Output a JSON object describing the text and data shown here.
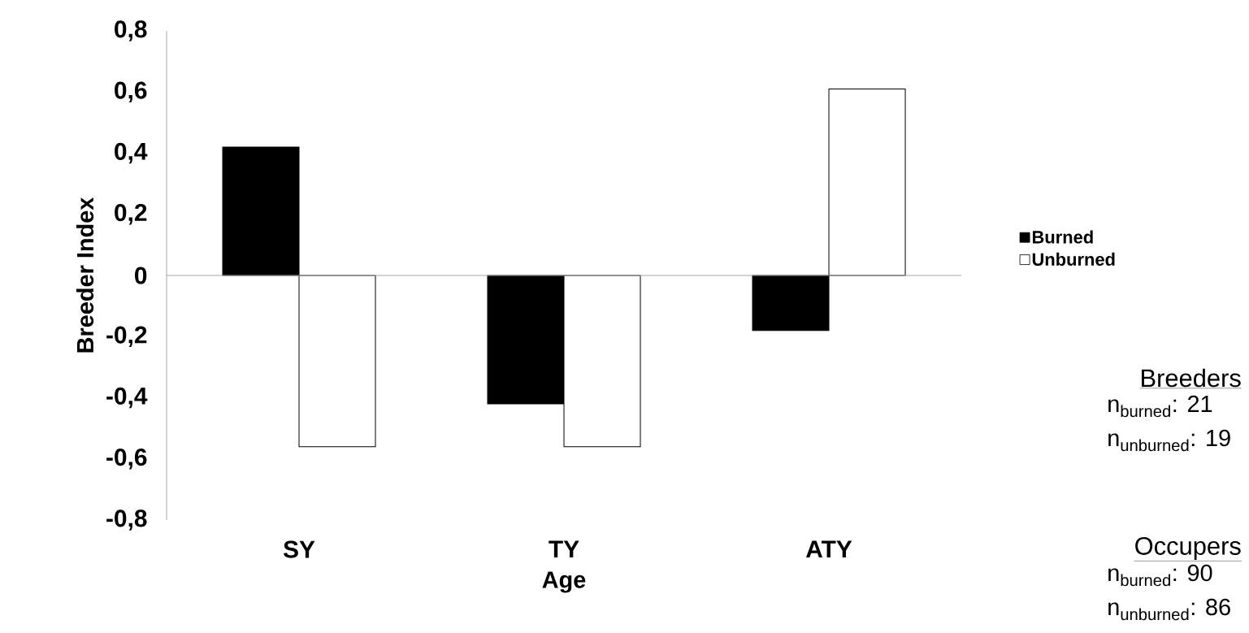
{
  "chart_data": {
    "type": "bar",
    "xlabel": "Age",
    "ylabel": "Breeder Index",
    "categories": [
      "SY",
      "TY",
      "ATY"
    ],
    "series": [
      {
        "name": "Burned",
        "color": "#000000",
        "values": [
          0.42,
          -0.42,
          -0.18
        ]
      },
      {
        "name": "Unburned",
        "color": "#ffffff",
        "values": [
          -0.56,
          -0.56,
          0.61
        ]
      }
    ],
    "ylim": [
      -0.8,
      0.8
    ],
    "yticks": [
      {
        "value": -0.8,
        "label": "-0,8"
      },
      {
        "value": -0.6,
        "label": "-0,6"
      },
      {
        "value": -0.4,
        "label": "-0,4"
      },
      {
        "value": -0.2,
        "label": "-0,2"
      },
      0,
      {
        "value": 0.2,
        "label": "0,2"
      },
      {
        "value": 0.4,
        "label": "0,4"
      },
      {
        "value": 0.6,
        "label": "0,6"
      },
      {
        "value": 0.8,
        "label": "0,8"
      }
    ],
    "legend": "right",
    "annotations": [
      "Breeders",
      "n$_{burned}$: 21",
      "n$_{unburned}$: 19",
      "Occupers",
      "n$_{burned}$: 90",
      "n$_{unburned}$: 86"
    ]
  }
}
